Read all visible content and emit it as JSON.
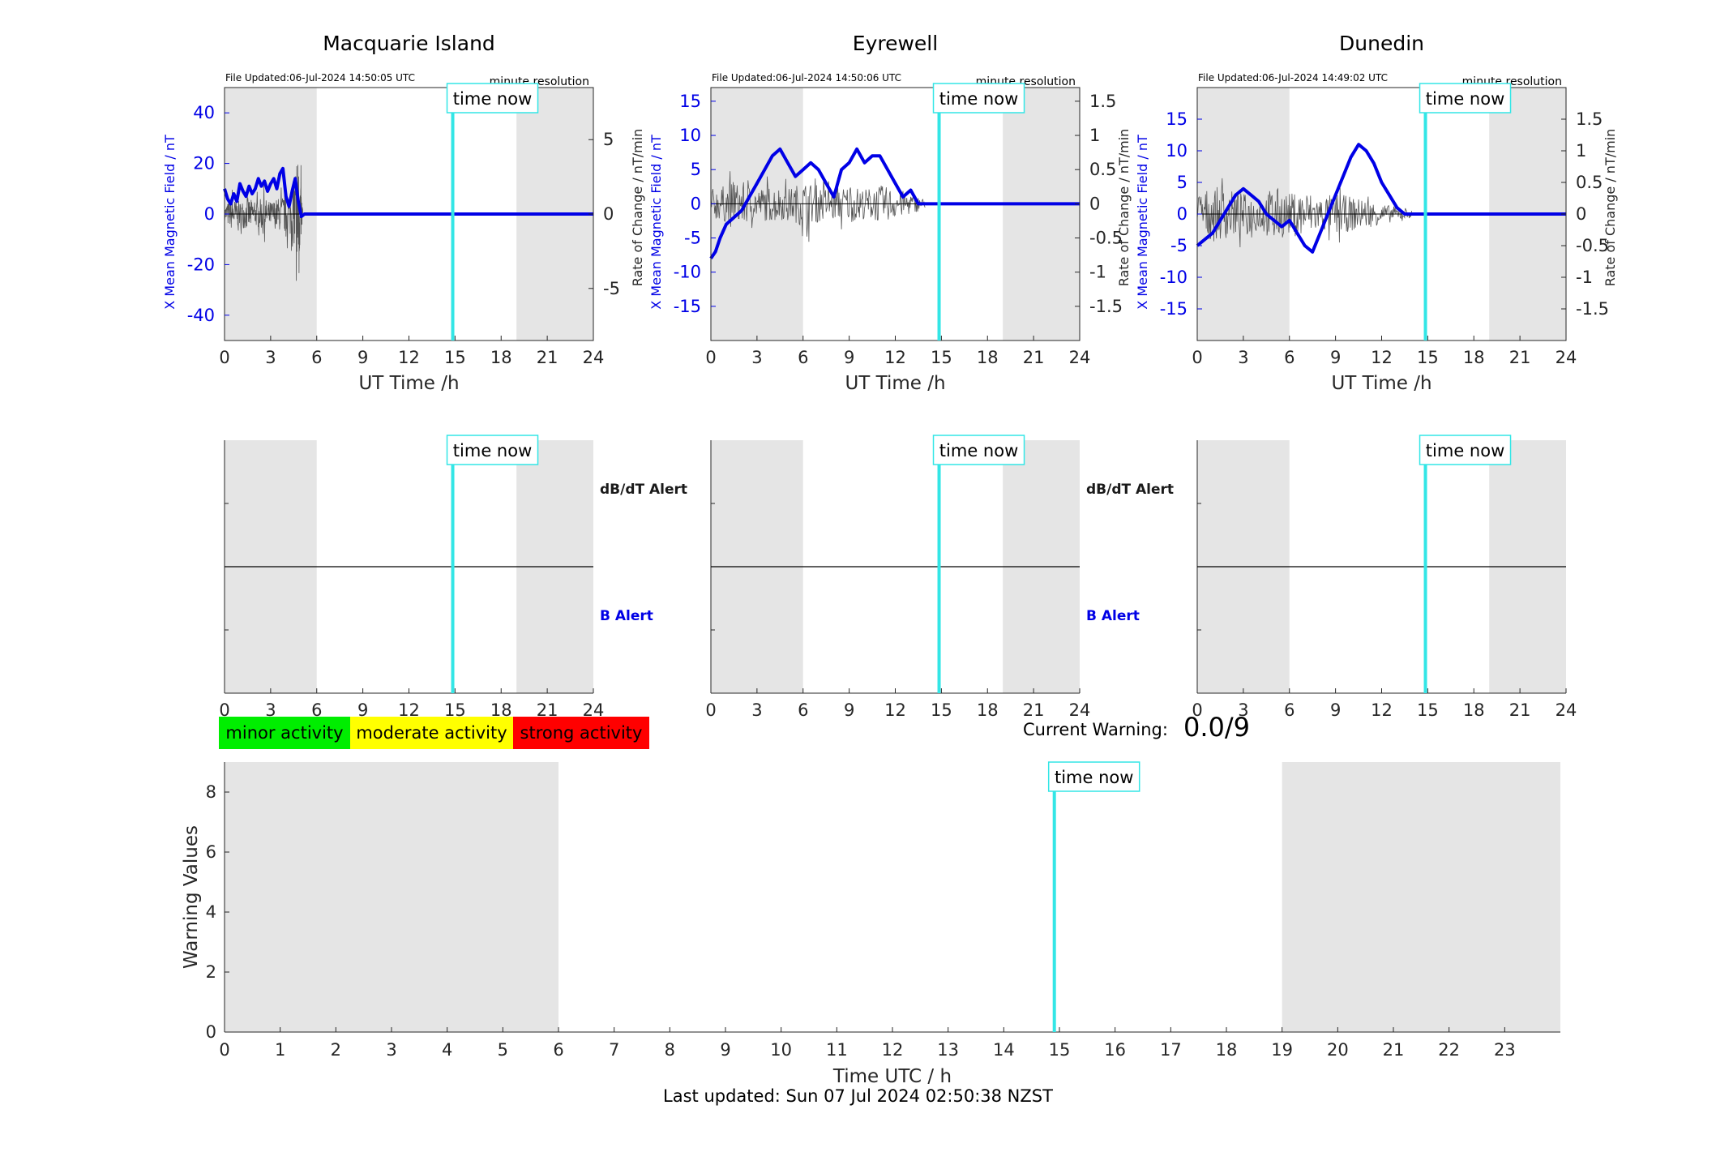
{
  "colors": {
    "field": "#0000e6",
    "rate": "#555555",
    "now_line": "#33e6e6",
    "shade": "#e5e5e5",
    "minor": "#00ee00",
    "moderate": "#ffff00",
    "strong": "#ff0000"
  },
  "time_now_label": "time now",
  "minute_resolution_label": "minute resolution",
  "x_ticks": [
    0,
    3,
    6,
    9,
    12,
    15,
    18,
    21,
    24
  ],
  "x_axis_label": "UT Time /h",
  "left_axis_label": "X Mean Magnetic Field / nT",
  "right_axis_label": "Rate of Change / nT/min",
  "alerts": {
    "dbdt_label": "dB/dT Alert",
    "b_label": "B Alert"
  },
  "stations": [
    {
      "name": "Macquarie Island",
      "file_updated": "File Updated:06-Jul-2024 14:50:05 UTC"
    },
    {
      "name": "Eyrewell",
      "file_updated": "File Updated:06-Jul-2024 14:50:06 UTC"
    },
    {
      "name": "Dunedin",
      "file_updated": "File Updated:06-Jul-2024 14:49:02 UTC"
    }
  ],
  "legend": [
    {
      "label": "minor activity",
      "color": "#00ee00"
    },
    {
      "label": "moderate activity",
      "color": "#ffff00"
    },
    {
      "label": "strong activity",
      "color": "#ff0000"
    }
  ],
  "current_warning": {
    "label": "Current Warning:",
    "value": "0.0/9"
  },
  "footer": "Last updated: Sun 07 Jul 2024 02:50:38 NZST",
  "chart_data": [
    {
      "type": "line",
      "title": "Macquarie Island",
      "xlabel": "UT Time /h",
      "ylabel": "X Mean Magnetic Field / nT",
      "y2label": "Rate of Change / nT/min",
      "xlim": [
        0,
        24
      ],
      "ylim": [
        -50,
        50
      ],
      "yticks": [
        -40,
        -20,
        0,
        20,
        40
      ],
      "y2lim": [
        -8.5,
        8.5
      ],
      "y2ticks": [
        -5,
        0,
        5
      ],
      "shaded_hours": [
        [
          0,
          6
        ],
        [
          19,
          24
        ]
      ],
      "time_now": 14.85,
      "series": [
        {
          "x": [
            0,
            0.2,
            0.4,
            0.6,
            0.8,
            1,
            1.2,
            1.4,
            1.6,
            1.8,
            2,
            2.2,
            2.4,
            2.6,
            2.8,
            3,
            3.2,
            3.4,
            3.6,
            3.8,
            4,
            4.2,
            4.4,
            4.6,
            4.8,
            5,
            5.2,
            24
          ],
          "y": [
            10,
            6,
            4,
            8,
            5,
            12,
            9,
            7,
            11,
            8,
            10,
            14,
            11,
            13,
            9,
            12,
            14,
            10,
            16,
            18,
            7,
            3,
            9,
            14,
            5,
            -1,
            0,
            0
          ]
        }
      ],
      "rate_envelope": [
        [
          0,
          1
        ],
        [
          0.5,
          2
        ],
        [
          1,
          1.5
        ],
        [
          1.5,
          2
        ],
        [
          2,
          1.5
        ],
        [
          2.5,
          2
        ],
        [
          3,
          1.5
        ],
        [
          3.5,
          2
        ],
        [
          4,
          2.5
        ],
        [
          4.5,
          3
        ],
        [
          4.7,
          8
        ],
        [
          4.9,
          5
        ],
        [
          5.1,
          0.5
        ]
      ]
    },
    {
      "type": "line",
      "title": "Eyrewell",
      "xlabel": "UT Time /h",
      "ylabel": "X Mean Magnetic Field / nT",
      "y2label": "Rate of Change / nT/min",
      "xlim": [
        0,
        24
      ],
      "ylim": [
        -20,
        17
      ],
      "yticks": [
        -15,
        -10,
        -5,
        0,
        5,
        10,
        15
      ],
      "y2lim": [
        -2,
        1.7
      ],
      "y2ticks": [
        -1.5,
        -1,
        -0.5,
        0,
        0.5,
        1,
        1.5
      ],
      "shaded_hours": [
        [
          0,
          6
        ],
        [
          19,
          24
        ]
      ],
      "time_now": 14.85,
      "series": [
        {
          "x": [
            0,
            0.3,
            0.6,
            1,
            1.5,
            2,
            2.5,
            3,
            3.5,
            4,
            4.5,
            5,
            5.5,
            6,
            6.5,
            7,
            7.5,
            8,
            8.5,
            9,
            9.5,
            10,
            10.5,
            11,
            11.5,
            12,
            12.5,
            13,
            13.5,
            14,
            14.5,
            24
          ],
          "y": [
            -8,
            -7,
            -5,
            -3,
            -2,
            -1,
            1,
            3,
            5,
            7,
            8,
            6,
            4,
            5,
            6,
            5,
            3,
            1,
            5,
            6,
            8,
            6,
            7,
            7,
            5,
            3,
            1,
            2,
            0,
            0,
            0,
            0
          ]
        }
      ],
      "rate_envelope": [
        [
          0,
          0.4
        ],
        [
          1,
          0.5
        ],
        [
          2,
          0.6
        ],
        [
          3,
          0.4
        ],
        [
          4,
          0.5
        ],
        [
          5,
          0.4
        ],
        [
          6,
          0.6
        ],
        [
          7,
          0.5
        ],
        [
          8,
          0.4
        ],
        [
          9,
          0.5
        ],
        [
          10,
          0.4
        ],
        [
          11,
          0.5
        ],
        [
          12,
          0.4
        ],
        [
          13,
          0.3
        ],
        [
          14,
          0.1
        ]
      ]
    },
    {
      "type": "line",
      "title": "Dunedin",
      "xlabel": "UT Time /h",
      "ylabel": "X Mean Magnetic Field / nT",
      "y2label": "Rate of Change / nT/min",
      "xlim": [
        0,
        24
      ],
      "ylim": [
        -20,
        20
      ],
      "yticks": [
        -15,
        -10,
        -5,
        0,
        5,
        10,
        15
      ],
      "y2lim": [
        -2,
        2
      ],
      "y2ticks": [
        -1.5,
        -1,
        -0.5,
        0,
        0.5,
        1,
        1.5
      ],
      "shaded_hours": [
        [
          0,
          6
        ],
        [
          19,
          24
        ]
      ],
      "time_now": 14.85,
      "series": [
        {
          "x": [
            0,
            0.5,
            1,
            1.5,
            2,
            2.5,
            3,
            3.5,
            4,
            4.5,
            5,
            5.5,
            6,
            6.5,
            7,
            7.5,
            8,
            8.5,
            9,
            9.5,
            10,
            10.5,
            11,
            11.5,
            12,
            12.5,
            13,
            13.5,
            14,
            14.5,
            15,
            24
          ],
          "y": [
            -5,
            -4,
            -3,
            -1,
            1,
            3,
            4,
            3,
            2,
            0,
            -1,
            -2,
            -1,
            -3,
            -5,
            -6,
            -3,
            0,
            3,
            6,
            9,
            11,
            10,
            8,
            5,
            3,
            1,
            0,
            0,
            0,
            0,
            0
          ]
        }
      ],
      "rate_envelope": [
        [
          0,
          0.6
        ],
        [
          1,
          0.8
        ],
        [
          2,
          0.7
        ],
        [
          3,
          0.6
        ],
        [
          4,
          0.5
        ],
        [
          5,
          0.8
        ],
        [
          6,
          0.6
        ],
        [
          7,
          0.7
        ],
        [
          8,
          0.5
        ],
        [
          9,
          0.6
        ],
        [
          10,
          0.5
        ],
        [
          11,
          0.4
        ],
        [
          12,
          0.3
        ],
        [
          13,
          0.2
        ],
        [
          14,
          0.1
        ]
      ]
    },
    {
      "type": "line",
      "title": "",
      "xlabel": "Time UTC / h",
      "ylabel": "Warning Values",
      "xlim": [
        0,
        24
      ],
      "ylim": [
        0,
        9
      ],
      "xticks": [
        0,
        1,
        2,
        3,
        4,
        5,
        6,
        7,
        8,
        9,
        10,
        11,
        12,
        13,
        14,
        15,
        16,
        17,
        18,
        19,
        20,
        21,
        22,
        23
      ],
      "yticks": [
        0,
        2,
        4,
        6,
        8
      ],
      "shaded_hours": [
        [
          0,
          6
        ],
        [
          19,
          24
        ]
      ],
      "time_now": 14.85,
      "series": []
    }
  ]
}
